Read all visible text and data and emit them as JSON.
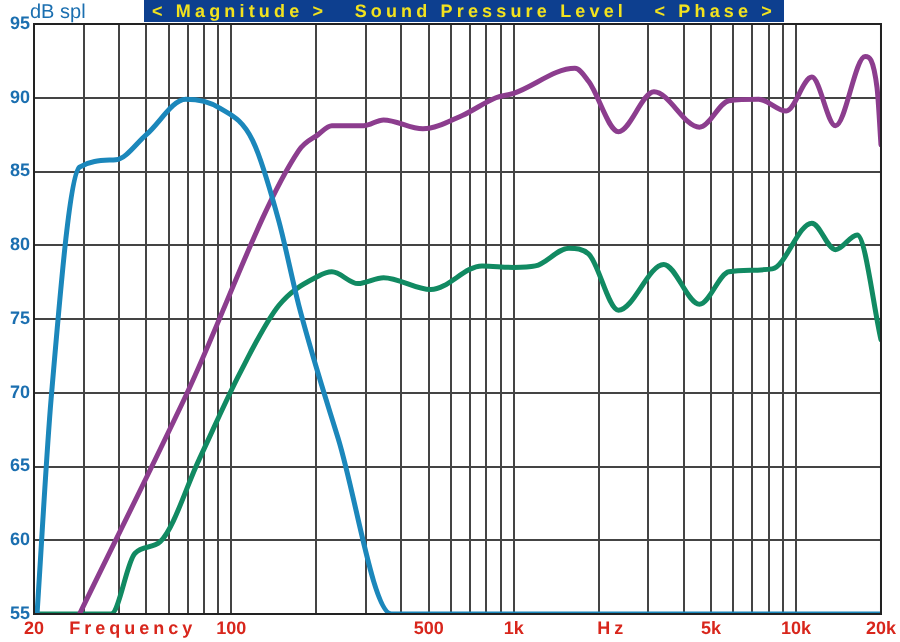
{
  "chart_data": {
    "type": "line",
    "title": "< Magnitude >   Sound Pressure Level   < Phase >",
    "ylabel": "dB spl",
    "xlabel": "Frequency",
    "annotations": [
      "Hz"
    ],
    "xlim": [
      20,
      20000
    ],
    "ylim": [
      55,
      95
    ],
    "log": "x",
    "grid": true,
    "legend": false,
    "marker": "none",
    "line_style": "solid",
    "xticks": [
      {
        "value": 20,
        "label": "20"
      },
      {
        "value": 30,
        "label": null
      },
      {
        "value": 40,
        "label": null
      },
      {
        "value": 50,
        "label": null
      },
      {
        "value": 60,
        "label": null
      },
      {
        "value": 70,
        "label": null
      },
      {
        "value": 80,
        "label": null
      },
      {
        "value": 90,
        "label": null
      },
      {
        "value": 100,
        "label": "100"
      },
      {
        "value": 200,
        "label": null
      },
      {
        "value": 300,
        "label": null
      },
      {
        "value": 400,
        "label": null
      },
      {
        "value": 500,
        "label": "500"
      },
      {
        "value": 600,
        "label": null
      },
      {
        "value": 700,
        "label": null
      },
      {
        "value": 800,
        "label": null
      },
      {
        "value": 900,
        "label": null
      },
      {
        "value": 1000,
        "label": "1k"
      },
      {
        "value": 2000,
        "label": null
      },
      {
        "value": 3000,
        "label": null
      },
      {
        "value": 4000,
        "label": null
      },
      {
        "value": 5000,
        "label": "5k"
      },
      {
        "value": 6000,
        "label": null
      },
      {
        "value": 7000,
        "label": null
      },
      {
        "value": 8000,
        "label": null
      },
      {
        "value": 9000,
        "label": null
      },
      {
        "value": 10000,
        "label": "10k"
      },
      {
        "value": 20000,
        "label": "20k"
      }
    ],
    "yticks": [
      55,
      60,
      65,
      70,
      75,
      80,
      85,
      90,
      95
    ],
    "series": [
      {
        "color": "#1b87bb",
        "x": [
          20.5,
          23,
          29,
          39,
          50,
          69,
          91,
          119,
          147,
          173,
          203,
          239,
          369,
          20000
        ],
        "values": [
          55,
          69.6,
          85.3,
          85.8,
          87.5,
          89.9,
          89.3,
          87.1,
          81.7,
          76,
          71.3,
          66.9,
          55,
          55
        ]
      },
      {
        "color": "#8c3d8e",
        "x": [
          29,
          69,
          173,
          203,
          227,
          294,
          346,
          477,
          658,
          865,
          1000,
          1648,
          1845,
          2350,
          3140,
          4550,
          5790,
          7370,
          9230,
          11380,
          13800,
          17570,
          19360,
          20000
        ],
        "values": [
          55,
          69.8,
          86.4,
          87.5,
          88.1,
          88.1,
          88.5,
          87.9,
          88.8,
          90,
          90.3,
          92,
          91.1,
          87.7,
          90.4,
          88,
          89.8,
          89.9,
          89.1,
          91.4,
          88.1,
          92.8,
          90.7,
          86.8
        ]
      },
      {
        "color": "#118a62",
        "x": [
          20,
          37.5,
          45.5,
          56,
          77,
          107,
          147,
          203,
          227,
          281,
          346,
          509,
          773,
          1000,
          1194,
          1570,
          1845,
          2350,
          3400,
          4550,
          5790,
          8240,
          11380,
          13800,
          16480,
          20000
        ],
        "values": [
          55,
          55,
          59.1,
          59.9,
          65.5,
          71.3,
          75.9,
          77.9,
          78.2,
          77.4,
          77.8,
          77,
          78.6,
          78.5,
          78.6,
          79.8,
          79.4,
          75.6,
          78.7,
          76,
          78.2,
          78.4,
          81.5,
          79.7,
          80.7,
          73.6
        ]
      }
    ]
  }
}
